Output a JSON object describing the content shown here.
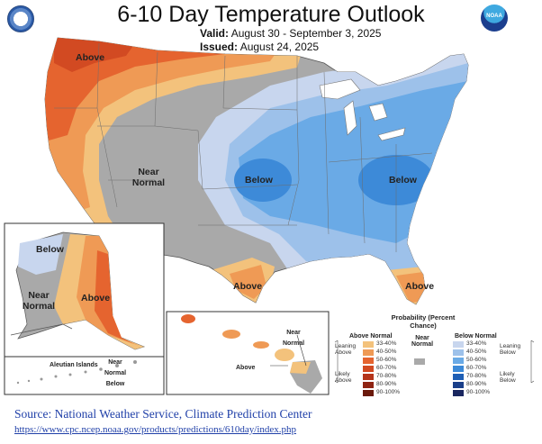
{
  "title": "6-10 Day Temperature Outlook",
  "valid_label": "Valid:",
  "valid_text": "August 30 - September 3, 2025",
  "issued_label": "Issued:",
  "issued_text": "August 24, 2025",
  "logos": {
    "left": "department-of-commerce-seal",
    "right": "noaa-logo",
    "right_text": "NOAA"
  },
  "map_labels": {
    "above_nw": "Above",
    "near_normal": "Near Normal",
    "below_central": "Below",
    "below_east": "Below",
    "above_tx": "Above",
    "above_fl": "Above",
    "ak_below": "Below",
    "ak_near_normal": "Near Normal",
    "ak_above": "Above",
    "aleutian": "Aleutian Islands",
    "aleutian_near_normal": "Near Normal Below",
    "hi_near_normal": "Near Normal",
    "hi_above": "Above"
  },
  "legend": {
    "title": "Probability (Percent Chance)",
    "above_header": "Above Normal",
    "near_header": "Near Normal",
    "below_header": "Below Normal",
    "leaning_above": "Leaning Above",
    "likely_above": "Likely Above",
    "leaning_below": "Leaning Below",
    "likely_below": "Likely Below",
    "ranges": [
      "33-40%",
      "40-50%",
      "50-60%",
      "60-70%",
      "70-80%",
      "80-90%",
      "90-100%"
    ],
    "above_colors": [
      "#f3c27c",
      "#ef9a55",
      "#e5642f",
      "#d24a22",
      "#b5351b",
      "#8f2413",
      "#6a190b"
    ],
    "below_colors": [
      "#c8d6ee",
      "#9dc1ea",
      "#6aaae6",
      "#3d8ad8",
      "#1f5fb5",
      "#1a3f8a",
      "#1a2760"
    ],
    "near_color": "#a9a9a9"
  },
  "source_text": "Source: National Weather Service, Climate Prediction Center",
  "source_url": "https://www.cpc.ncep.noaa.gov/products/predictions/610day/index.php"
}
